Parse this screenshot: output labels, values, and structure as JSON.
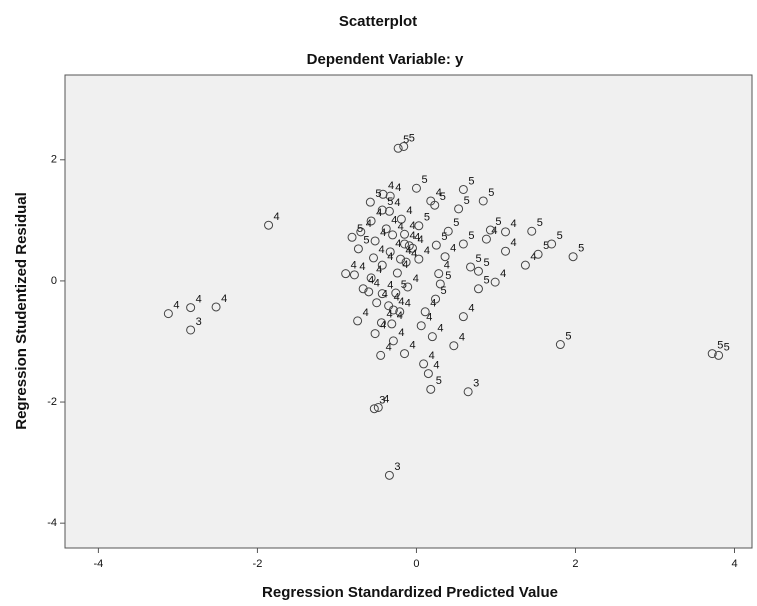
{
  "chart_data": {
    "type": "scatter",
    "title": "Scatterplot",
    "subtitle": "Dependent Variable: y",
    "x_label": "Regression Standardized Predicted Value",
    "y_label": "Regression Studentized Residual",
    "xlim": [
      -4.42,
      4.22
    ],
    "ylim": [
      -4.41,
      3.4
    ],
    "xticks": [
      -4,
      -2,
      0,
      2,
      4
    ],
    "yticks": [
      2,
      0,
      -2,
      -4
    ],
    "color": "#444444",
    "grid": false,
    "x": [
      -0.23,
      -0.16,
      -1.86,
      -3.12,
      -2.84,
      -2.84,
      -2.52,
      -0.42,
      -0.33,
      -0.58,
      -0.43,
      -0.34,
      -0.19,
      -0.57,
      -0.38,
      -0.15,
      -0.7,
      -0.81,
      -0.3,
      -0.52,
      -0.15,
      -0.09,
      -0.05,
      -0.73,
      -0.33,
      -0.54,
      -0.2,
      -0.13,
      -0.43,
      -0.24,
      -0.57,
      -0.67,
      -0.6,
      -0.43,
      -0.26,
      -0.11,
      -0.5,
      -0.35,
      -0.29,
      -0.21,
      -0.74,
      -0.44,
      -0.31,
      0.06,
      0.11,
      -0.52,
      -0.29,
      0.2,
      -0.45,
      -0.15,
      0.09,
      0.15,
      0.18,
      0.65,
      -0.53,
      -0.48,
      -0.34,
      0.0,
      0.18,
      0.23,
      0.03,
      0.4,
      0.59,
      0.84,
      0.25,
      0.36,
      0.59,
      0.88,
      0.93,
      0.68,
      0.78,
      0.99,
      0.3,
      0.78,
      0.24,
      0.59,
      0.47,
      1.12,
      1.12,
      1.37,
      1.45,
      1.53,
      1.7,
      1.97,
      1.81,
      3.72,
      3.8,
      -0.89,
      -0.78,
      0.03,
      0.53,
      0.28
    ],
    "y": [
      2.19,
      2.22,
      0.92,
      -0.54,
      -0.44,
      -0.81,
      -0.43,
      1.43,
      1.4,
      1.3,
      1.17,
      1.15,
      1.02,
      0.99,
      0.86,
      0.77,
      0.81,
      0.72,
      0.76,
      0.66,
      0.61,
      0.58,
      0.54,
      0.53,
      0.48,
      0.38,
      0.36,
      0.31,
      0.26,
      0.13,
      0.05,
      -0.13,
      -0.18,
      -0.21,
      -0.2,
      -0.1,
      -0.36,
      -0.41,
      -0.48,
      -0.51,
      -0.66,
      -0.69,
      -0.71,
      -0.74,
      -0.51,
      -0.87,
      -0.99,
      -0.92,
      -1.23,
      -1.2,
      -1.37,
      -1.53,
      -1.79,
      -1.83,
      -2.11,
      -2.09,
      -3.21,
      1.53,
      1.32,
      1.25,
      0.91,
      0.82,
      1.51,
      1.32,
      0.59,
      0.4,
      0.61,
      0.69,
      0.84,
      0.23,
      0.16,
      -0.02,
      -0.05,
      -0.13,
      -0.3,
      -0.59,
      -1.07,
      0.81,
      0.49,
      0.26,
      0.82,
      0.44,
      0.61,
      0.4,
      -1.05,
      -1.2,
      -1.23,
      0.12,
      0.1,
      0.36,
      1.19,
      0.12
    ],
    "point_labels": [
      "5",
      "5",
      "4",
      "4",
      "4",
      "3",
      "4",
      "4",
      "4",
      "5",
      "5",
      "4",
      "4",
      "4",
      "4",
      "4",
      "4",
      "5",
      "4",
      "4",
      "4",
      "4",
      "4",
      "5",
      "4",
      "4",
      "4",
      "4",
      "4",
      "4",
      "4",
      "4",
      "4",
      "4",
      "5",
      "4",
      "4",
      "4",
      "4",
      "4",
      "4",
      "4",
      "4",
      "4",
      "4",
      "4",
      "4",
      "4",
      "4",
      "4",
      "4",
      "4",
      "5",
      "3",
      "3",
      "4",
      "3",
      "5",
      "4",
      "5",
      "5",
      "5",
      "5",
      "5",
      "5",
      "4",
      "5",
      "4",
      "5",
      "5",
      "5",
      "4",
      "5",
      "5",
      "5",
      "4",
      "4",
      "4",
      "4",
      "4",
      "5",
      "5",
      "5",
      "5",
      "5",
      "5",
      "5",
      "4",
      "4",
      "4",
      "5",
      "4"
    ]
  }
}
